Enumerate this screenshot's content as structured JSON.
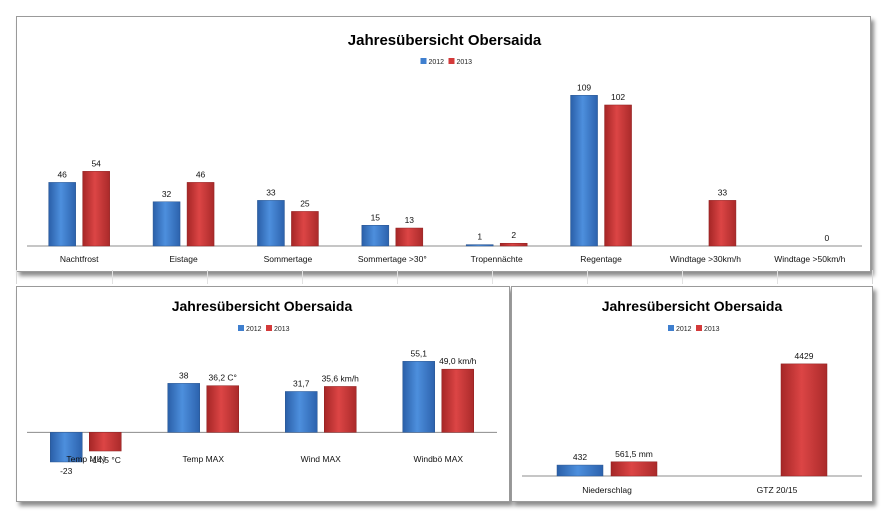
{
  "chart_data": [
    {
      "type": "bar",
      "title": "Jahresübersicht Obersaida",
      "legend": "top-center",
      "categories": [
        "Nachtfrost",
        "Eistage",
        "Sommertage",
        "Sommertage >30°",
        "Tropennächte",
        "Regentage",
        "Windtage >30km/h",
        "Windtage >50km/h"
      ],
      "series": [
        {
          "name": "2012",
          "color": "#3f7fcf",
          "values": [
            46,
            32,
            33,
            15,
            1,
            109,
            null,
            null
          ],
          "labels": [
            "46",
            "32",
            "33",
            "15",
            "1",
            "109",
            "",
            ""
          ]
        },
        {
          "name": "2013",
          "color": "#d43a3a",
          "values": [
            54,
            46,
            25,
            13,
            2,
            102,
            33,
            0
          ],
          "labels": [
            "54",
            "46",
            "25",
            "13",
            "2",
            "102",
            "33",
            "0"
          ]
        }
      ],
      "ylim": [
        0,
        115
      ],
      "grid": false
    },
    {
      "type": "bar",
      "title": "Jahresübersicht Obersaida",
      "legend": "top-center",
      "categories": [
        "Temp MIN",
        "Temp MAX",
        "Wind MAX",
        "Windbö MAX"
      ],
      "series": [
        {
          "name": "2012",
          "color": "#3f7fcf",
          "values": [
            -23,
            38,
            31.7,
            55.1
          ],
          "labels": [
            "-23",
            "38",
            "31,7",
            "55,1"
          ]
        },
        {
          "name": "2013",
          "color": "#d43a3a",
          "values": [
            -14.5,
            36.2,
            35.6,
            49.0
          ],
          "labels": [
            "-14,5 °C",
            "36,2 C°",
            "35,6 km/h",
            "49,0 km/h"
          ]
        }
      ],
      "ylim": [
        -30,
        60
      ],
      "grid": false
    },
    {
      "type": "bar",
      "title": "Jahresübersicht Obersaida",
      "legend": "top-center",
      "categories": [
        "Niederschlag",
        "GTZ 20/15"
      ],
      "series": [
        {
          "name": "2012",
          "color": "#3f7fcf",
          "values": [
            432,
            null
          ],
          "labels": [
            "432",
            ""
          ]
        },
        {
          "name": "2013",
          "color": "#d43a3a",
          "values": [
            561.5,
            4429
          ],
          "labels": [
            "561,5 mm",
            "4429"
          ]
        }
      ],
      "ylim": [
        0,
        4700
      ],
      "grid": false
    }
  ]
}
